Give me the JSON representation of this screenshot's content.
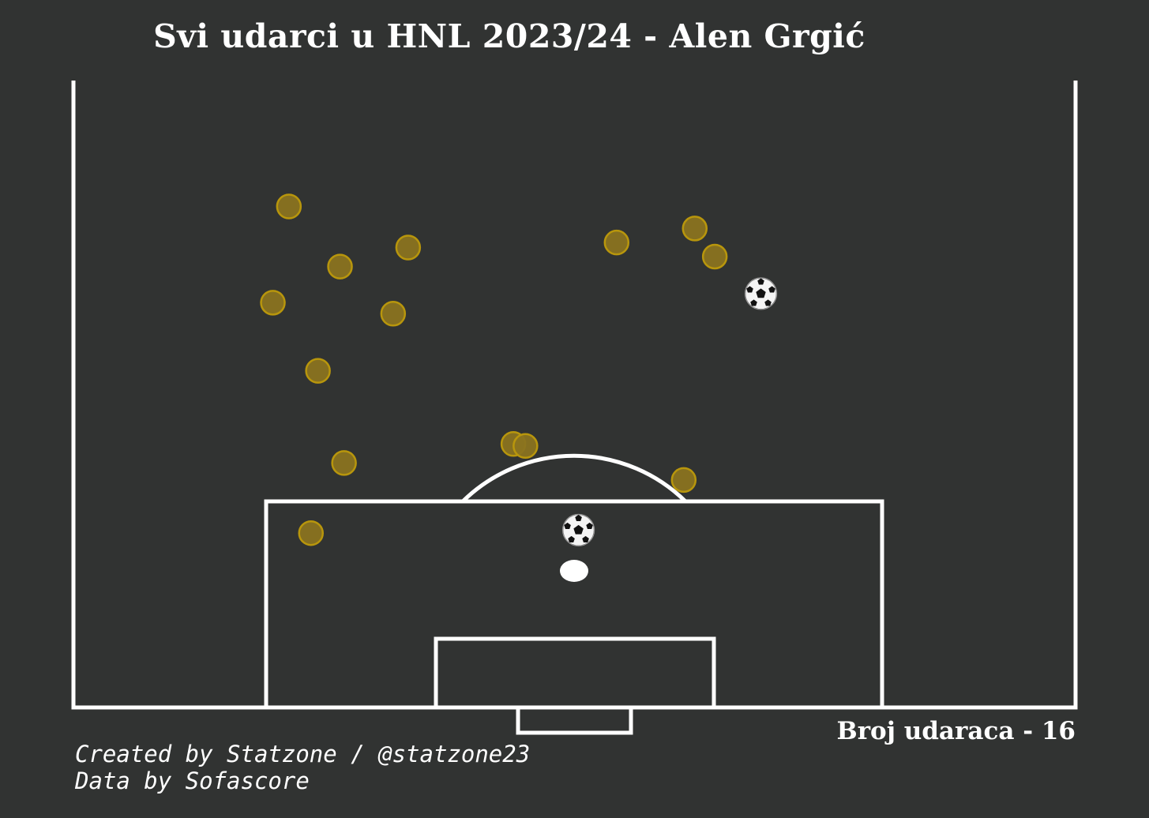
{
  "chart_data": {
    "type": "scatter",
    "title": "Svi udarci u HNL 2023/24 - Alen Grgić",
    "count_label": "Broj udaraca - 16",
    "credits": [
      "Created by Statzone / @statzone23",
      "Data by Sofascore"
    ],
    "colors": {
      "background": "#313332",
      "lines": "#ffffff",
      "shot_fill": "#8a7320",
      "shot_edge": "#b8960c"
    },
    "shots": [
      {
        "x": 21.5,
        "y": 50.0,
        "outcome": "miss"
      },
      {
        "x": 26.6,
        "y": 44.0,
        "outcome": "miss"
      },
      {
        "x": 33.4,
        "y": 45.9,
        "outcome": "miss"
      },
      {
        "x": 19.9,
        "y": 40.4,
        "outcome": "miss"
      },
      {
        "x": 31.9,
        "y": 39.3,
        "outcome": "miss"
      },
      {
        "x": 24.4,
        "y": 33.6,
        "outcome": "miss"
      },
      {
        "x": 27.0,
        "y": 24.4,
        "outcome": "miss"
      },
      {
        "x": 23.7,
        "y": 17.4,
        "outcome": "miss"
      },
      {
        "x": 43.9,
        "y": 26.3,
        "outcome": "miss"
      },
      {
        "x": 45.1,
        "y": 26.1,
        "outcome": "miss"
      },
      {
        "x": 54.2,
        "y": 46.4,
        "outcome": "miss"
      },
      {
        "x": 62.0,
        "y": 47.8,
        "outcome": "miss"
      },
      {
        "x": 64.0,
        "y": 45.0,
        "outcome": "miss"
      },
      {
        "x": 60.9,
        "y": 22.7,
        "outcome": "miss"
      },
      {
        "x": 68.6,
        "y": 41.3,
        "outcome": "goal"
      },
      {
        "x": 50.4,
        "y": 17.7,
        "outcome": "goal"
      }
    ]
  }
}
